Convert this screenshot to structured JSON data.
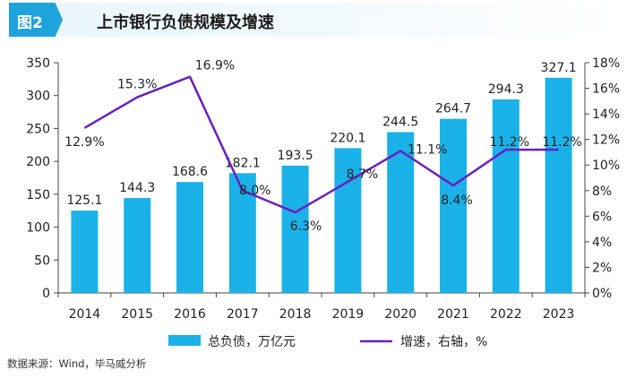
{
  "header": {
    "figure_tag": "图2",
    "title": "上市银行负债规模及增速"
  },
  "chart_data": {
    "type": "bar",
    "categories": [
      "2014",
      "2015",
      "2016",
      "2017",
      "2018",
      "2019",
      "2020",
      "2021",
      "2022",
      "2023"
    ],
    "series": [
      {
        "name": "总负债，万亿元",
        "type": "bar",
        "axis": "left",
        "color": "#1ab2e8",
        "values": [
          125.1,
          144.3,
          168.6,
          182.1,
          193.5,
          220.1,
          244.5,
          264.7,
          294.3,
          327.1
        ],
        "labels": [
          "125.1",
          "144.3",
          "168.6",
          "182.1",
          "193.5",
          "220.1",
          "244.5",
          "264.7",
          "294.3",
          "327.1"
        ]
      },
      {
        "name": "增速，右轴，%",
        "type": "line",
        "axis": "right",
        "color": "#6a1fc0",
        "values": [
          12.9,
          15.3,
          16.9,
          8.0,
          6.3,
          8.7,
          11.1,
          8.4,
          11.2,
          11.2
        ],
        "labels": [
          "12.9%",
          "15.3%",
          "16.9%",
          "8.0%",
          "6.3%",
          "8.7%",
          "11.1%",
          "8.4%",
          "11.2%",
          "11.2%"
        ]
      }
    ],
    "y_left": {
      "ylim": [
        0,
        350
      ],
      "ticks": [
        "0",
        "50",
        "100",
        "150",
        "200",
        "250",
        "300",
        "350"
      ]
    },
    "y_right": {
      "ylim": [
        0,
        18
      ],
      "ticks": [
        "0%",
        "2%",
        "4%",
        "6%",
        "8%",
        "10%",
        "12%",
        "14%",
        "16%",
        "18%"
      ]
    },
    "legend_position": "bottom",
    "grid": false
  },
  "source_note": "数据来源：Wind，毕马威分析"
}
